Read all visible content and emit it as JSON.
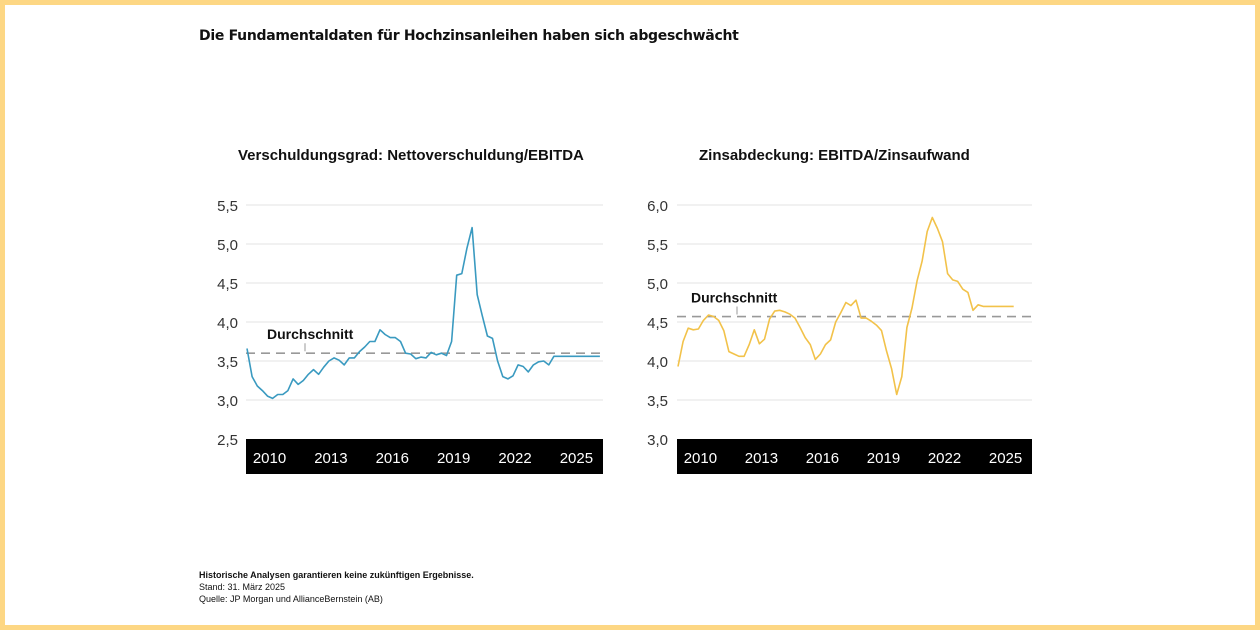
{
  "page": {
    "title": "Die Fundamentaldaten für Hochzinsanleihen haben sich abgeschwächt",
    "border_color": "#fdd784"
  },
  "footnotes": {
    "disclaimer": "Historische Analysen garantieren keine zukünftigen Ergebnisse.",
    "date": "Stand: 31. März 2025",
    "source": "Quelle: JP Morgan und AllianceBernstein (AB)"
  },
  "chart_data": [
    {
      "type": "line",
      "title": "Verschuldungsgrad: Nettoverschuldung/EBITDA",
      "xlabel": "",
      "ylabel": "",
      "ylim": [
        2.5,
        5.5
      ],
      "xlim": [
        2008.85,
        2026.3
      ],
      "yticks": [
        2.5,
        3.0,
        3.5,
        4.0,
        4.5,
        5.0,
        5.5
      ],
      "ytick_labels": [
        "2,5",
        "3,0",
        "3,5",
        "4,0",
        "4,5",
        "5,0",
        "5,5"
      ],
      "xticks": [
        2010,
        2013,
        2016,
        2019,
        2022,
        2025
      ],
      "xtick_labels": [
        "2010",
        "2013",
        "2016",
        "2019",
        "2022",
        "2025"
      ],
      "grid": true,
      "line_color": "#3a9ac0",
      "average": {
        "label": "Durchschnitt",
        "value": 3.6
      },
      "series": [
        {
          "name": "Nettoverschuldung/EBITDA",
          "x": [
            2008.9,
            2009.15,
            2009.4,
            2009.65,
            2009.9,
            2010.15,
            2010.4,
            2010.65,
            2010.9,
            2011.15,
            2011.4,
            2011.65,
            2011.9,
            2012.15,
            2012.4,
            2012.65,
            2012.9,
            2013.15,
            2013.4,
            2013.65,
            2013.9,
            2014.15,
            2014.4,
            2014.65,
            2014.9,
            2015.15,
            2015.4,
            2015.65,
            2015.9,
            2016.15,
            2016.4,
            2016.65,
            2016.9,
            2017.15,
            2017.4,
            2017.65,
            2017.9,
            2018.15,
            2018.4,
            2018.65,
            2018.9,
            2019.15,
            2019.4,
            2019.65,
            2019.9,
            2020.15,
            2020.4,
            2020.65,
            2020.9,
            2021.15,
            2021.4,
            2021.65,
            2021.9,
            2022.15,
            2022.4,
            2022.65,
            2022.9,
            2023.15,
            2023.4,
            2023.65,
            2023.9,
            2024.15,
            2024.4,
            2024.65,
            2024.9,
            2025.15,
            2025.4,
            2025.65,
            2025.9,
            2026.15
          ],
          "values": [
            3.66,
            3.3,
            3.18,
            3.12,
            3.05,
            3.02,
            3.07,
            3.07,
            3.12,
            3.27,
            3.2,
            3.25,
            3.33,
            3.39,
            3.33,
            3.42,
            3.5,
            3.54,
            3.51,
            3.45,
            3.54,
            3.54,
            3.62,
            3.68,
            3.75,
            3.75,
            3.9,
            3.84,
            3.8,
            3.8,
            3.75,
            3.6,
            3.59,
            3.53,
            3.55,
            3.54,
            3.61,
            3.58,
            3.6,
            3.57,
            3.75,
            4.6,
            4.62,
            4.95,
            5.21,
            4.35,
            4.08,
            3.82,
            3.79,
            3.5,
            3.3,
            3.27,
            3.31,
            3.45,
            3.43,
            3.36,
            3.45,
            3.49,
            3.5,
            3.45,
            3.56,
            3.56,
            3.56,
            3.56,
            3.56,
            3.56,
            3.56,
            3.56,
            3.56,
            3.56
          ]
        }
      ]
    },
    {
      "type": "line",
      "title": "Zinsabdeckung: EBITDA/Zinsaufwand",
      "xlabel": "",
      "ylabel": "",
      "ylim": [
        3.0,
        6.0
      ],
      "xlim": [
        2008.85,
        2026.3
      ],
      "yticks": [
        3.0,
        3.5,
        4.0,
        4.5,
        5.0,
        5.5,
        6.0
      ],
      "ytick_labels": [
        "3,0",
        "3,5",
        "4,0",
        "4,5",
        "5,0",
        "5,5",
        "6,0"
      ],
      "xticks": [
        2010,
        2013,
        2016,
        2019,
        2022,
        2025
      ],
      "xtick_labels": [
        "2010",
        "2013",
        "2016",
        "2019",
        "2022",
        "2025"
      ],
      "grid": true,
      "line_color": "#f2c24a",
      "average": {
        "label": "Durchschnitt",
        "value": 4.57
      },
      "series": [
        {
          "name": "EBITDA/Zinsaufwand",
          "x": [
            2008.9,
            2009.15,
            2009.4,
            2009.65,
            2009.9,
            2010.15,
            2010.4,
            2010.65,
            2010.9,
            2011.15,
            2011.4,
            2011.65,
            2011.9,
            2012.15,
            2012.4,
            2012.65,
            2012.9,
            2013.15,
            2013.4,
            2013.65,
            2013.9,
            2014.15,
            2014.4,
            2014.65,
            2014.9,
            2015.15,
            2015.4,
            2015.65,
            2015.9,
            2016.15,
            2016.4,
            2016.65,
            2016.9,
            2017.15,
            2017.4,
            2017.65,
            2017.9,
            2018.15,
            2018.4,
            2018.65,
            2018.9,
            2019.15,
            2019.4,
            2019.65,
            2019.9,
            2020.15,
            2020.4,
            2020.65,
            2020.9,
            2021.15,
            2021.4,
            2021.65,
            2021.9,
            2022.15,
            2022.4,
            2022.65,
            2022.9,
            2023.15,
            2023.4,
            2023.65,
            2023.9,
            2024.15,
            2024.4,
            2024.65,
            2024.9,
            2025.15,
            2025.4
          ],
          "values": [
            3.93,
            4.25,
            4.42,
            4.4,
            4.41,
            4.52,
            4.59,
            4.57,
            4.52,
            4.39,
            4.12,
            4.09,
            4.06,
            4.06,
            4.21,
            4.4,
            4.22,
            4.28,
            4.54,
            4.64,
            4.65,
            4.63,
            4.6,
            4.55,
            4.43,
            4.3,
            4.21,
            4.02,
            4.09,
            4.21,
            4.27,
            4.5,
            4.62,
            4.75,
            4.71,
            4.78,
            4.55,
            4.55,
            4.51,
            4.46,
            4.39,
            4.13,
            3.9,
            3.57,
            3.8,
            4.43,
            4.68,
            5.03,
            5.28,
            5.66,
            5.84,
            5.7,
            5.53,
            5.12,
            5.04,
            5.02,
            4.92,
            4.88,
            4.65,
            4.72,
            4.7,
            4.7,
            4.7,
            4.7,
            4.7,
            4.7,
            4.7
          ]
        }
      ]
    }
  ]
}
